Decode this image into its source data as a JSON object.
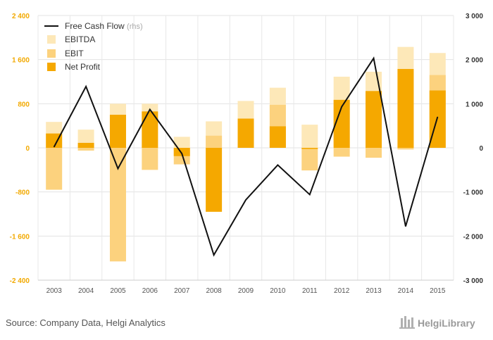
{
  "chart_data": {
    "type": "bar",
    "categories": [
      "2003",
      "2004",
      "2005",
      "2006",
      "2007",
      "2008",
      "2009",
      "2010",
      "2011",
      "2012",
      "2013",
      "2014",
      "2015"
    ],
    "left_axis": {
      "ylim": [
        -2400,
        2400
      ],
      "ticks": [
        2400,
        1600,
        800,
        0,
        -800,
        -1600,
        -2400
      ],
      "tick_labels": [
        "2 400",
        "1 600",
        "800",
        "0",
        "-800",
        "-1 600",
        "-2 400"
      ]
    },
    "right_axis": {
      "ylim": [
        -3000,
        3000
      ],
      "ticks": [
        3000,
        2000,
        1000,
        0,
        -1000,
        -2000,
        -3000
      ],
      "tick_labels": [
        "3 000",
        "2 000",
        "1 000",
        "0",
        "-1 000",
        "-2 000",
        "-3 000"
      ]
    },
    "series": [
      {
        "name": "EBITDA",
        "kind": "bar",
        "color": "#fde8b8",
        "values": [
          470,
          330,
          800,
          800,
          200,
          480,
          850,
          1090,
          420,
          1290,
          1380,
          1830,
          1720
        ]
      },
      {
        "name": "EBIT",
        "kind": "bar",
        "color": "#fcd27e",
        "values": [
          -760,
          -50,
          -2060,
          -400,
          -300,
          220,
          500,
          780,
          -410,
          -160,
          -180,
          -30,
          1320
        ]
      },
      {
        "name": "Net Profit",
        "kind": "bar",
        "color": "#f5a800",
        "values": [
          260,
          90,
          600,
          660,
          -150,
          -1160,
          530,
          390,
          -20,
          870,
          1030,
          1430,
          1040
        ]
      },
      {
        "name": "Free Cash Flow",
        "kind": "line",
        "axis": "right",
        "color": "#111111",
        "values": [
          20,
          1390,
          -470,
          870,
          -130,
          -2430,
          -1180,
          -390,
          -1060,
          930,
          2030,
          -1780,
          700
        ]
      }
    ],
    "legend": {
      "placement": "top-left",
      "items": [
        "Free Cash Flow",
        "EBITDA",
        "EBIT",
        "Net Profit"
      ],
      "note": "(rhs)"
    },
    "grid": true
  },
  "footer": {
    "source": "Source: Company Data, Helgi Analytics",
    "brand": "HelgiLibrary"
  }
}
